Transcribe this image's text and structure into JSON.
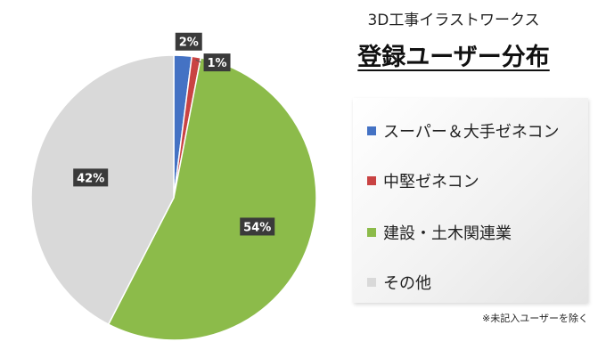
{
  "header": {
    "subtitle": "3D工事イラストワークス",
    "title": "登録ユーザー分布"
  },
  "footnote": "※未記入ユーザーを除く",
  "chart_data": {
    "type": "pie",
    "title": "登録ユーザー分布",
    "start_angle_deg": 0,
    "direction": "clockwise",
    "legend_position": "right",
    "slices": [
      {
        "label": "スーパー＆大手ゼネコン",
        "value": 2,
        "display": "2%",
        "color": "#4472C4"
      },
      {
        "label": "中堅ゼネコン",
        "value": 1,
        "display": "1%",
        "color": "#C94343"
      },
      {
        "label": "建設・土木関連業",
        "value": 54,
        "display": "54%",
        "color": "#8CBB4A"
      },
      {
        "label": "その他",
        "value": 42,
        "display": "42%",
        "color": "#D9D9D9"
      }
    ]
  }
}
